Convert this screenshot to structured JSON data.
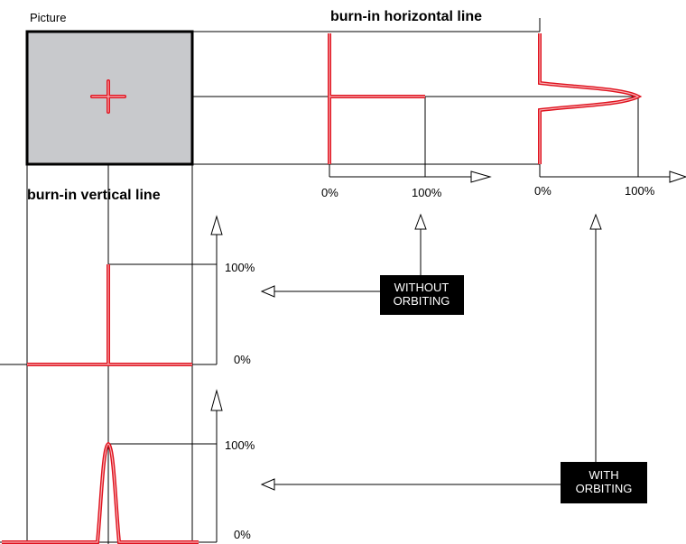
{
  "texts": {
    "picture": "Picture",
    "burn_in_horizontal": "burn-in horizontal  line",
    "burn_in_vertical": "burn-in vertical line",
    "h1_zero": "0%",
    "h1_hundred": "100%",
    "h2_zero": "0%",
    "h2_hundred": "100%",
    "v1_hundred": "100%",
    "v1_zero": "0%",
    "v2_hundred": "100%",
    "v2_zero": "0%",
    "without_orbiting_line1": "WITHOUT",
    "without_orbiting_line2": "ORBITING",
    "with_orbiting_line1": "WITH",
    "with_orbiting_line2": "ORBITING"
  },
  "colors": {
    "picture_fill": "#c8c9cc",
    "profile_red": "#e0121e",
    "box_black": "#000000",
    "line": "#000000"
  }
}
